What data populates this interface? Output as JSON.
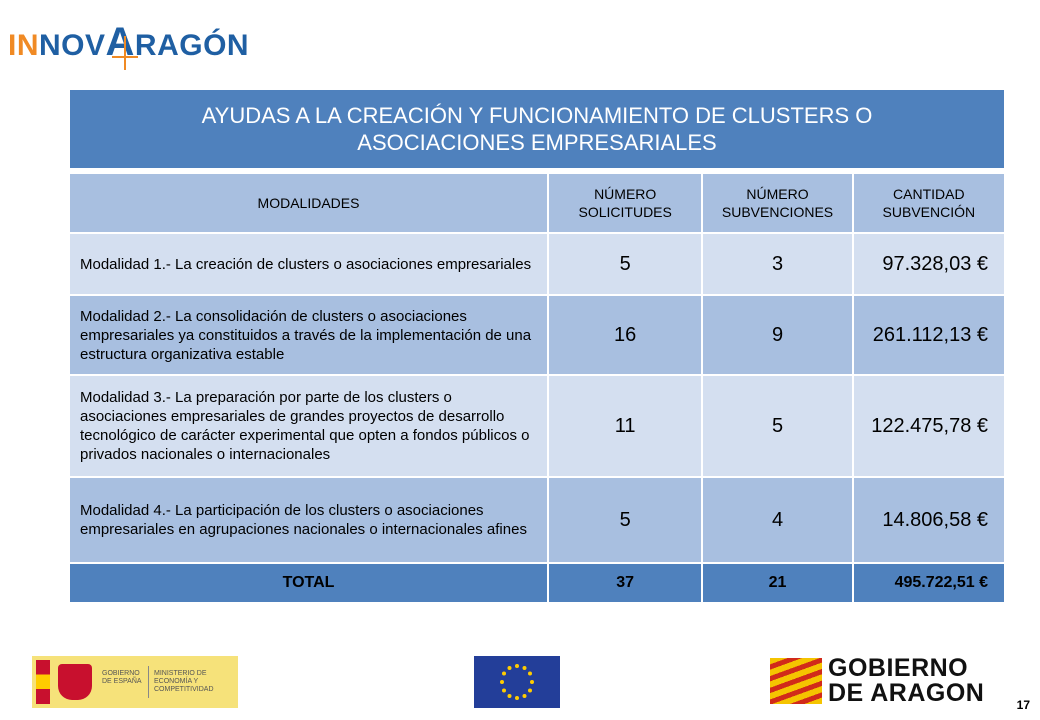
{
  "logo": {
    "part_in": "IN",
    "part_nov": "NOV",
    "part_a": "A",
    "part_ragon": "RAGÓN"
  },
  "title": "AYUDAS A LA CREACIÓN Y FUNCIONAMIENTO DE CLUSTERS O ASOCIACIONES EMPRESARIALES",
  "table": {
    "headers": [
      "MODALIDADES",
      "NÚMERO SOLICITUDES",
      "NÚMERO SUBVENCIONES",
      "CANTIDAD SUBVENCIÓN"
    ],
    "rows": [
      {
        "modalidad": "Modalidad 1.- La creación de clusters o asociaciones empresariales",
        "solicitudes": "5",
        "subvenciones": "3",
        "cantidad": "97.328,03 €"
      },
      {
        "modalidad": "Modalidad 2.- La consolidación de clusters o asociaciones empresariales ya constituidos a través de la implementación de una estructura organizativa estable",
        "solicitudes": "16",
        "subvenciones": "9",
        "cantidad": "261.112,13 €"
      },
      {
        "modalidad": "Modalidad 3.- La preparación por parte de los clusters o asociaciones empresariales de grandes proyectos de desarrollo tecnológico de carácter experimental que opten a fondos públicos o privados nacionales o internacionales",
        "solicitudes": "11",
        "subvenciones": "5",
        "cantidad": "122.475,78 €"
      },
      {
        "modalidad": "Modalidad 4.- La participación de los clusters o asociaciones empresariales en agrupaciones nacionales o internacionales afines",
        "solicitudes": "5",
        "subvenciones": "4",
        "cantidad": "14.806,58 €"
      }
    ],
    "total": {
      "label": "TOTAL",
      "solicitudes": "37",
      "subvenciones": "21",
      "cantidad": "495.722,51 €"
    }
  },
  "footer": {
    "ministerio_left": "GOBIERNO DE ESPAÑA",
    "ministerio_right": "MINISTERIO DE ECONOMÍA Y COMPETITIVIDAD",
    "gobierno_line1": "GOBIERNO",
    "gobierno_line2": "DE ARAGON",
    "page_number": "17"
  },
  "colors": {
    "banner": "#4f81bd",
    "header_cells": "#a8bfe0",
    "light_rows": "#d4dff0"
  }
}
